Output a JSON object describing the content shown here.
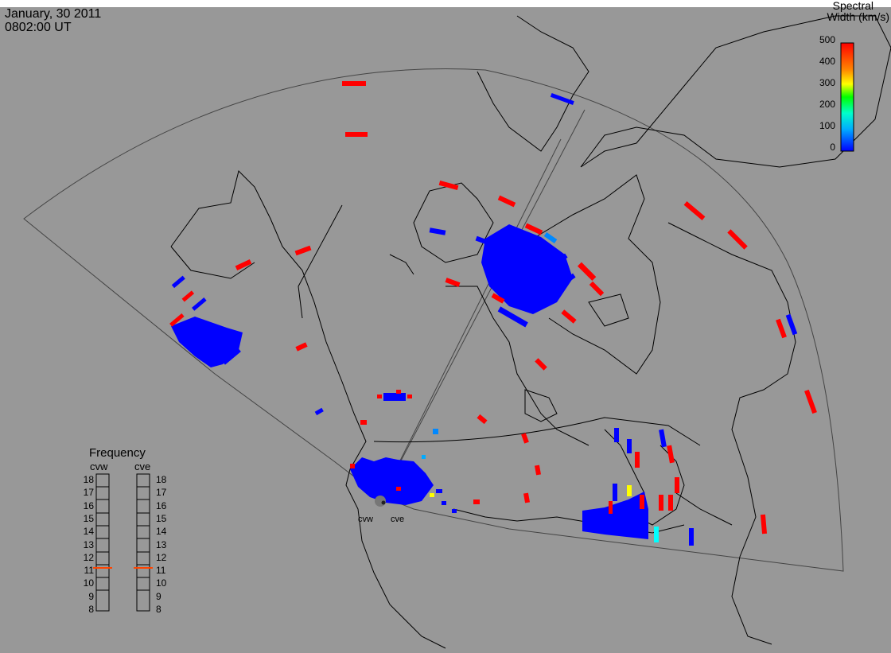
{
  "title": {
    "date": "January, 30 2011",
    "time": "0802:00 UT"
  },
  "colorbar": {
    "title_line1": "Spectral",
    "title_line2": "Width (km/s)",
    "ticks": [
      "500",
      "400",
      "300",
      "200",
      "100",
      "0"
    ],
    "range": [
      0,
      500
    ],
    "colors": [
      "#0000ff",
      "#00aaff",
      "#00ffcc",
      "#00ff00",
      "#ffff00",
      "#ff8800",
      "#ff0000"
    ]
  },
  "frequency": {
    "title": "Frequency",
    "radars": [
      "cvw",
      "cve"
    ],
    "levels": [
      "18",
      "17",
      "16",
      "15",
      "14",
      "13",
      "12",
      "11",
      "10",
      "9",
      "8"
    ],
    "current_mhz": {
      "cvw": 10.8,
      "cve": 10.8
    },
    "marker_color": "#ff4400"
  },
  "radar_sites": {
    "west": "cvw",
    "east": "cve"
  },
  "colors": {
    "background": "#989898",
    "coastline": "#000000",
    "fov": "#444444"
  }
}
